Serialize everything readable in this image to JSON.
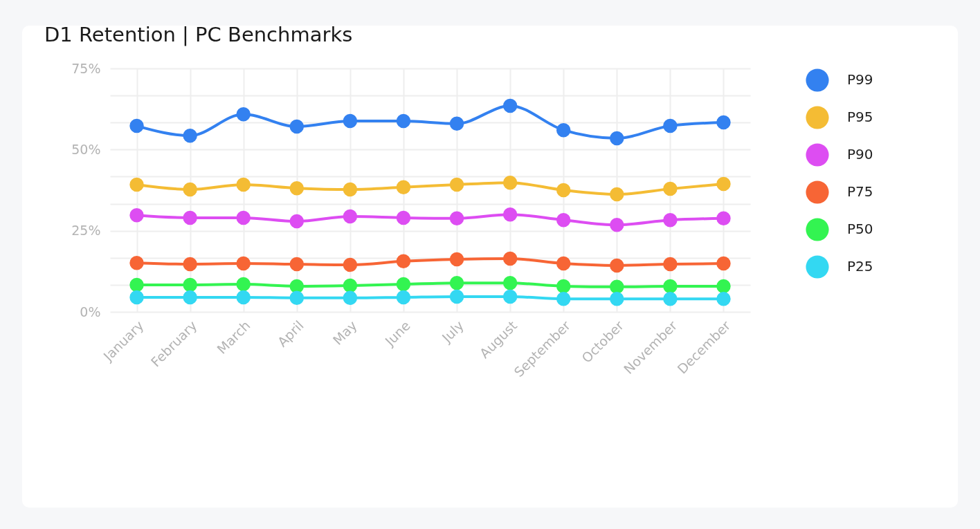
{
  "chart_data": {
    "type": "line",
    "title": "D1 Retention | PC Benchmarks",
    "categories": [
      "January",
      "February",
      "March",
      "April",
      "May",
      "June",
      "July",
      "August",
      "September",
      "October",
      "November",
      "December"
    ],
    "series": [
      {
        "name": "P99",
        "color": "#3381f0",
        "values": [
          57.3,
          54.3,
          60.9,
          57.1,
          58.8,
          58.8,
          58.0,
          63.5,
          56.0,
          53.5,
          57.3,
          58.4
        ]
      },
      {
        "name": "P95",
        "color": "#f4bc34",
        "values": [
          39.2,
          37.7,
          39.2,
          38.1,
          37.7,
          38.4,
          39.2,
          39.8,
          37.5,
          36.2,
          37.9,
          39.4
        ]
      },
      {
        "name": "P90",
        "color": "#dd4df2",
        "values": [
          29.8,
          29.0,
          29.0,
          27.9,
          29.4,
          29.0,
          28.8,
          30.0,
          28.3,
          26.8,
          28.3,
          28.8
        ]
      },
      {
        "name": "P75",
        "color": "#f76535",
        "values": [
          15.1,
          14.7,
          14.9,
          14.7,
          14.5,
          15.6,
          16.2,
          16.4,
          14.9,
          14.3,
          14.7,
          14.9
        ]
      },
      {
        "name": "P50",
        "color": "#33f451",
        "values": [
          8.3,
          8.3,
          8.5,
          7.9,
          8.1,
          8.5,
          8.9,
          8.9,
          7.9,
          7.7,
          7.9,
          7.9
        ]
      },
      {
        "name": "P25",
        "color": "#33d8f2",
        "values": [
          4.5,
          4.5,
          4.5,
          4.3,
          4.3,
          4.5,
          4.7,
          4.7,
          4.0,
          4.0,
          4.0,
          4.0
        ]
      }
    ],
    "ylim": [
      0,
      75
    ],
    "yticks": [
      {
        "value": 0,
        "label": "0%"
      },
      {
        "value": 8.33,
        "label": null
      },
      {
        "value": 16.67,
        "label": null
      },
      {
        "value": 25,
        "label": "25%"
      },
      {
        "value": 33.33,
        "label": null
      },
      {
        "value": 41.67,
        "label": null
      },
      {
        "value": 50,
        "label": "50%"
      },
      {
        "value": 58.33,
        "label": null
      },
      {
        "value": 66.67,
        "label": null
      },
      {
        "value": 75,
        "label": "75%"
      }
    ],
    "grid": true,
    "legend": "right",
    "marker": "circle"
  }
}
